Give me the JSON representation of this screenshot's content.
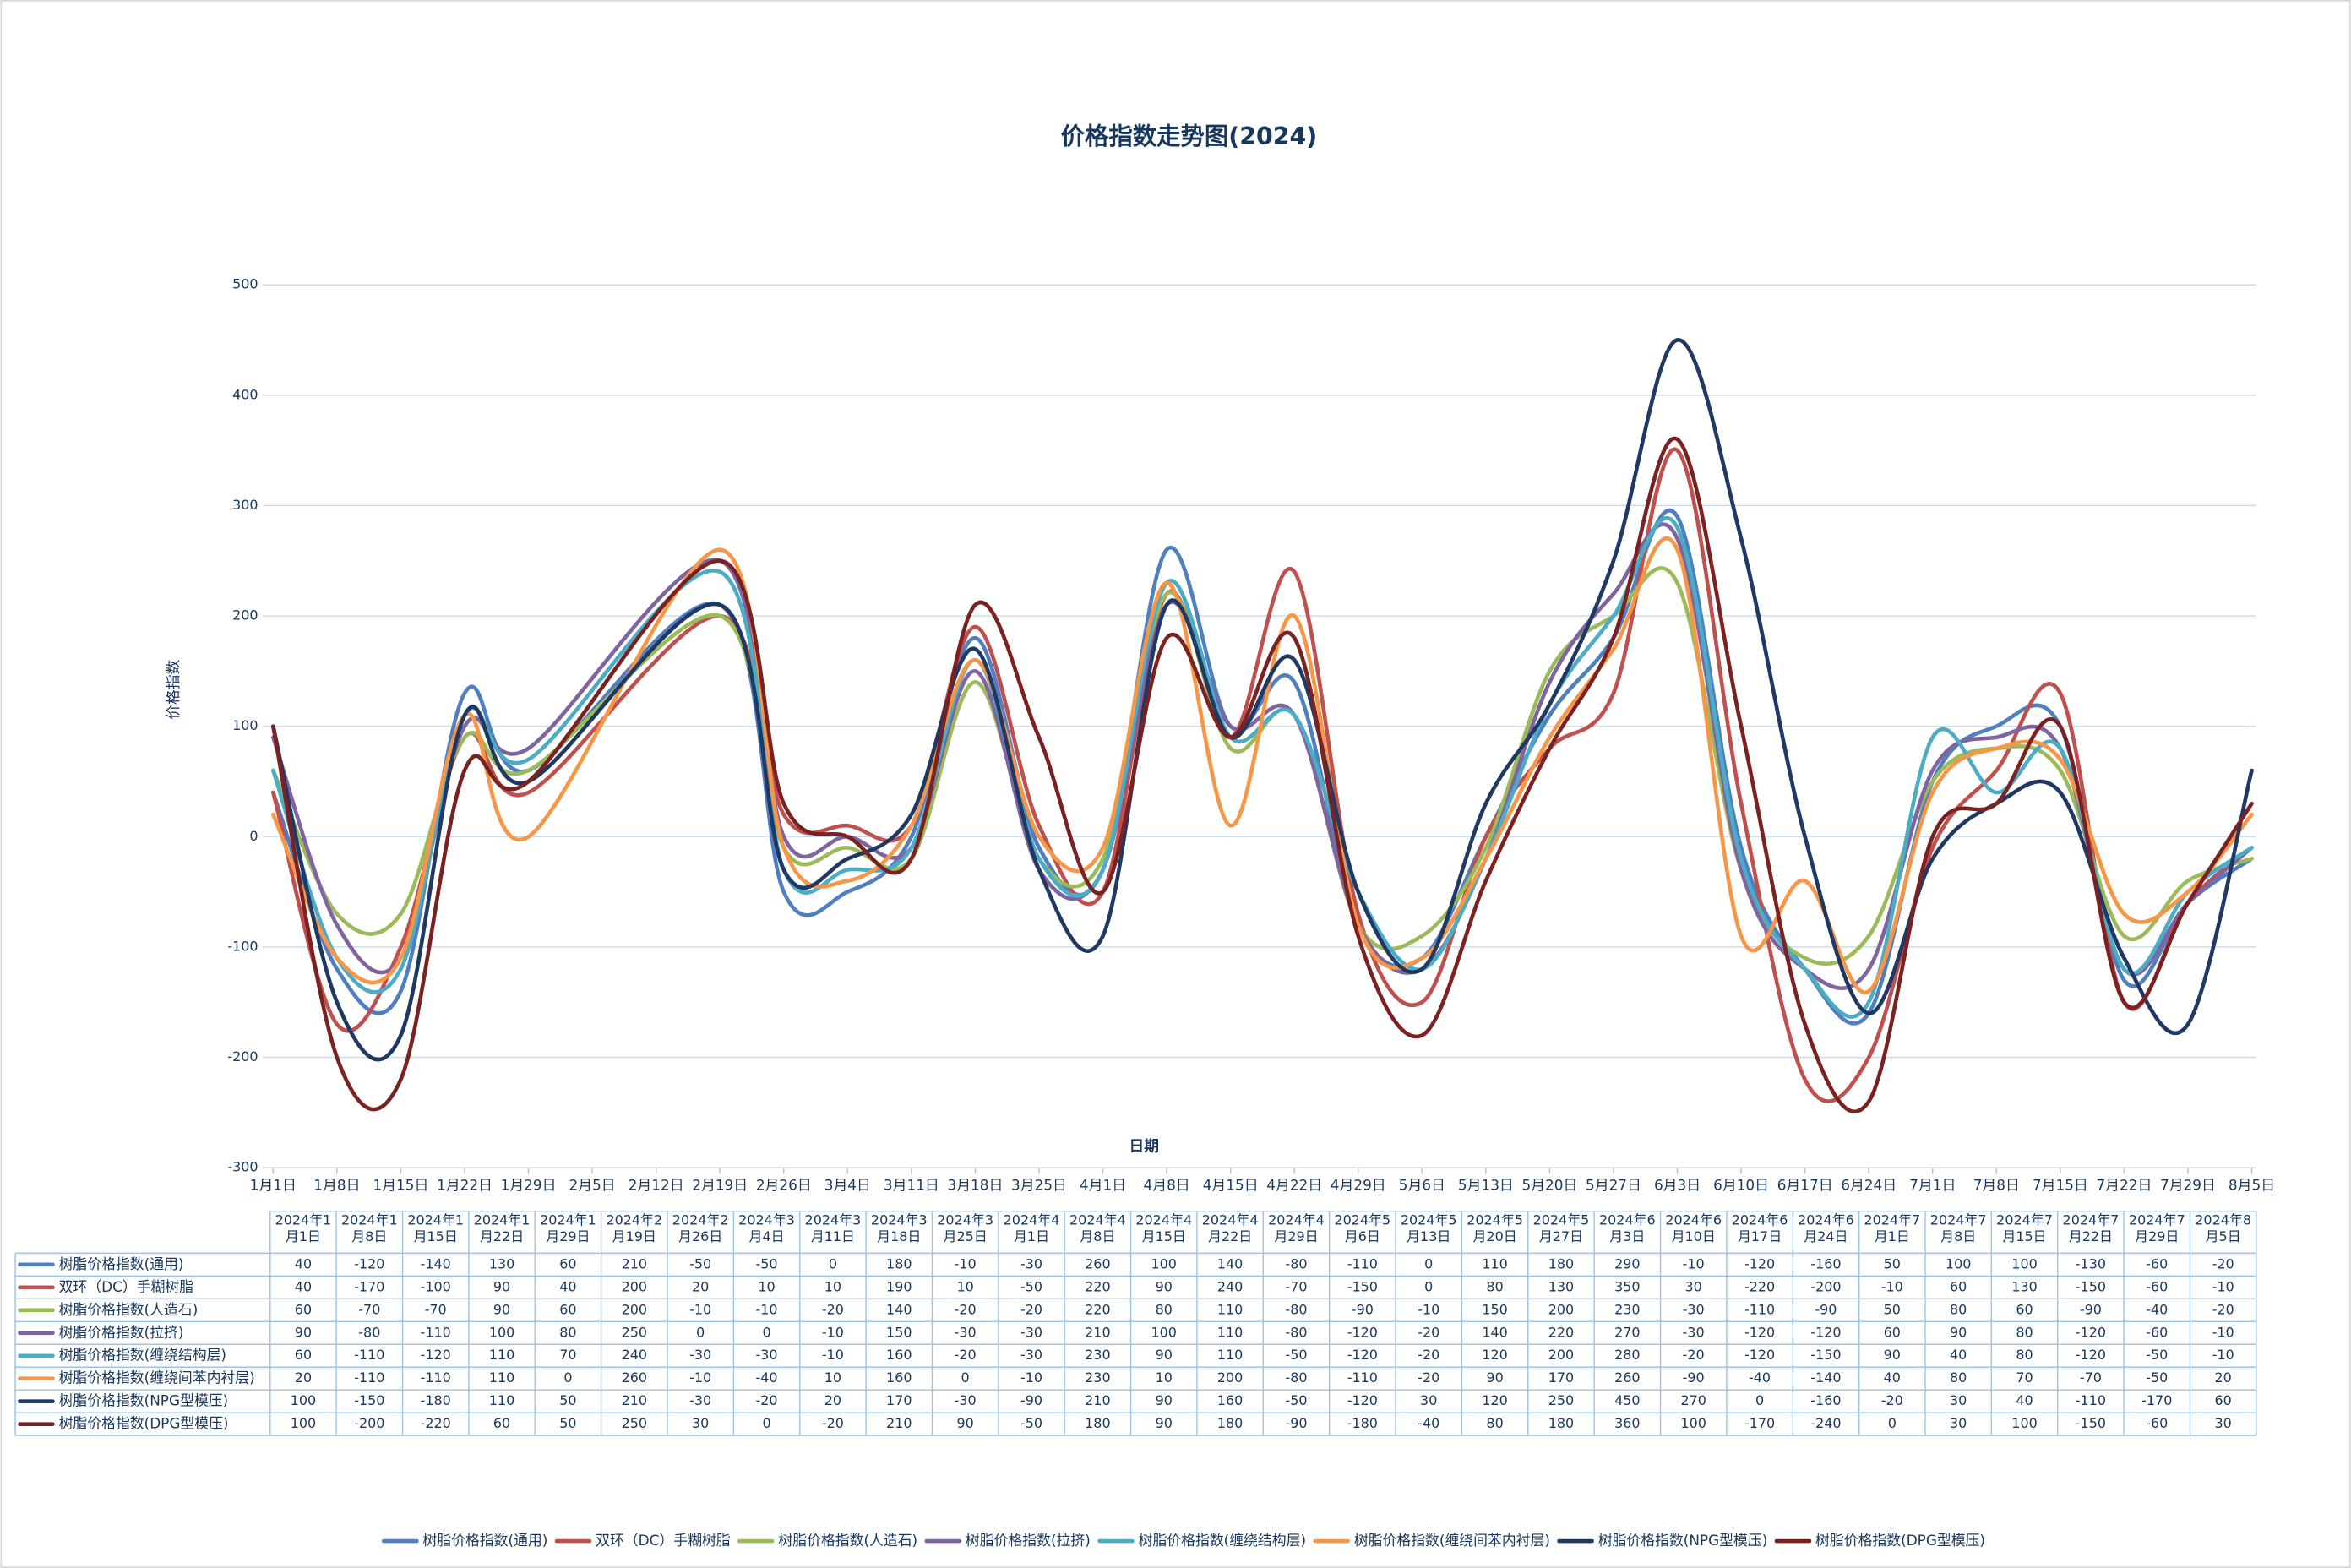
{
  "chart_data": {
    "type": "line",
    "title": "价格指数走势图(2024)",
    "x_label": "日期",
    "y_label": "价格指数",
    "x": [
      "2024年1月1日",
      "2024年1月8日",
      "2024年1月15日",
      "2024年1月22日",
      "2024年1月29日",
      "2024年2月19日",
      "2024年2月26日",
      "2024年3月4日",
      "2024年3月11日",
      "2024年3月18日",
      "2024年3月25日",
      "2024年4月1日",
      "2024年4月8日",
      "2024年4月15日",
      "2024年4月22日",
      "2024年4月29日",
      "2024年5月6日",
      "2024年5月13日",
      "2024年5月20日",
      "2024年5月27日",
      "2024年6月3日",
      "2024年6月10日",
      "2024年6月17日",
      "2024年6月24日",
      "2024年7月1日",
      "2024年7月8日",
      "2024年7月15日",
      "2024年7月22日",
      "2024年7月29日",
      "2024年8月5日"
    ],
    "xlim": [
      "1月1日",
      "8月5日"
    ],
    "xticks": [
      "1月1日",
      "1月8日",
      "1月15日",
      "1月22日",
      "1月29日",
      "2月5日",
      "2月12日",
      "2月19日",
      "2月26日",
      "3月4日",
      "3月11日",
      "3月18日",
      "3月25日",
      "4月1日",
      "4月8日",
      "4月15日",
      "4月22日",
      "4月29日",
      "5月6日",
      "5月13日",
      "5月20日",
      "5月27日",
      "6月3日",
      "6月10日",
      "6月17日",
      "6月24日",
      "7月1日",
      "7月8日",
      "7月15日",
      "7月22日",
      "7月29日",
      "8月5日"
    ],
    "ylim": [
      -300,
      500
    ],
    "yticks": [
      -300,
      -200,
      -100,
      0,
      100,
      200,
      300,
      400,
      500
    ],
    "grid": true,
    "legend": "bottom",
    "series": [
      {
        "name": "树脂价格指数(通用)",
        "color": "#4f7fc0",
        "values": [
          40,
          -120,
          -140,
          130,
          60,
          210,
          -50,
          -50,
          0,
          180,
          -10,
          -30,
          260,
          100,
          140,
          -80,
          -110,
          0,
          110,
          180,
          290,
          -10,
          -120,
          -160,
          50,
          100,
          100,
          -130,
          -60,
          -20
        ]
      },
      {
        "name": "双环（DC）手糊树脂",
        "color": "#c0504d",
        "values": [
          40,
          -170,
          -100,
          90,
          40,
          200,
          20,
          10,
          10,
          190,
          10,
          -50,
          220,
          90,
          240,
          -70,
          -150,
          0,
          80,
          130,
          350,
          30,
          -220,
          -200,
          -10,
          60,
          130,
          -150,
          -60,
          -10
        ]
      },
      {
        "name": "树脂价格指数(人造石)",
        "color": "#9bbb59",
        "values": [
          60,
          -70,
          -70,
          90,
          60,
          200,
          -10,
          -10,
          -20,
          140,
          -20,
          -20,
          220,
          80,
          110,
          -80,
          -90,
          -10,
          150,
          200,
          230,
          -30,
          -110,
          -90,
          50,
          80,
          60,
          -90,
          -40,
          -20
        ]
      },
      {
        "name": "树脂价格指数(拉挤)",
        "color": "#8064a2",
        "values": [
          90,
          -80,
          -110,
          100,
          80,
          250,
          0,
          0,
          -10,
          150,
          -30,
          -30,
          210,
          100,
          110,
          -80,
          -120,
          -20,
          140,
          220,
          270,
          -30,
          -120,
          -120,
          60,
          90,
          80,
          -120,
          -60,
          -10
        ]
      },
      {
        "name": "树脂价格指数(缠绕结构层)",
        "color": "#4bacc6",
        "values": [
          60,
          -110,
          -120,
          110,
          70,
          240,
          -30,
          -30,
          -10,
          160,
          -20,
          -30,
          230,
          90,
          110,
          -50,
          -120,
          -20,
          120,
          200,
          280,
          -20,
          -120,
          -150,
          90,
          40,
          80,
          -120,
          -50,
          -10
        ]
      },
      {
        "name": "树脂价格指数(缠绕间苯内衬层)",
        "color": "#f79646",
        "values": [
          20,
          -110,
          -110,
          110,
          0,
          260,
          -10,
          -40,
          10,
          160,
          0,
          -10,
          230,
          10,
          200,
          -80,
          -110,
          -20,
          90,
          170,
          260,
          -90,
          -40,
          -140,
          40,
          80,
          70,
          -70,
          -50,
          20
        ]
      },
      {
        "name": "树脂价格指数(NPG型模压)",
        "color": "#1f3864",
        "values": [
          100,
          -150,
          -180,
          110,
          50,
          210,
          -30,
          -20,
          20,
          170,
          -30,
          -90,
          210,
          90,
          160,
          -50,
          -120,
          30,
          120,
          250,
          450,
          270,
          0,
          -160,
          -20,
          30,
          40,
          -110,
          -170,
          60
        ]
      },
      {
        "name": "树脂价格指数(DPG型模压)",
        "color": "#7b2121",
        "values": [
          100,
          -200,
          -220,
          60,
          50,
          250,
          30,
          0,
          -20,
          210,
          90,
          -50,
          180,
          90,
          180,
          -90,
          -180,
          -40,
          80,
          180,
          360,
          100,
          -170,
          -240,
          0,
          30,
          100,
          -150,
          -60,
          30
        ]
      }
    ]
  }
}
